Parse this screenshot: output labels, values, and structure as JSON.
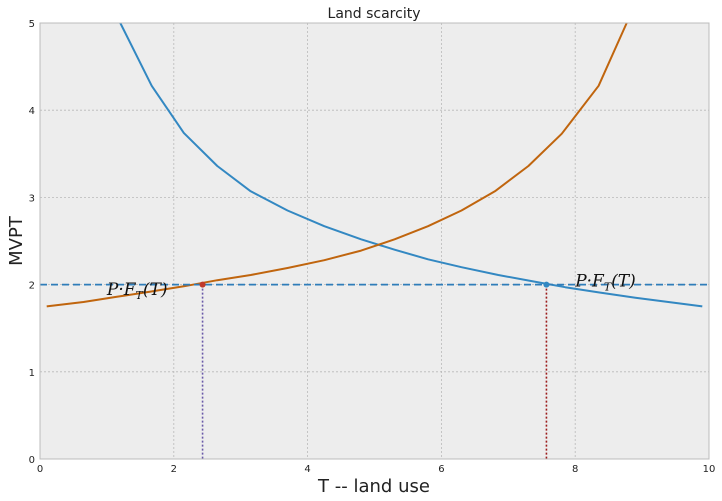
{
  "chart_data": {
    "type": "line",
    "title": "Land scarcity",
    "xlabel": "T -- land use",
    "ylabel": "MVPT",
    "xlim": [
      0,
      10
    ],
    "ylim": [
      0,
      5
    ],
    "xticks": [
      0,
      2,
      4,
      6,
      8,
      10
    ],
    "yticks": [
      0,
      1,
      2,
      3,
      4,
      5
    ],
    "xtick_labels": [
      "0",
      "2",
      "4",
      "6",
      "8",
      "10"
    ],
    "ytick_labels": [
      "0",
      "1",
      "2",
      "3",
      "4",
      "5"
    ],
    "grid": true,
    "series": [
      {
        "color": "#3388c2",
        "x": [
          1.2,
          1.67,
          2.15,
          2.65,
          3.15,
          3.7,
          4.25,
          4.8,
          5.3,
          5.8,
          6.3,
          6.85,
          7.35,
          7.85,
          8.35,
          8.9,
          9.9
        ],
        "y": [
          5.0,
          4.28,
          3.74,
          3.36,
          3.07,
          2.85,
          2.67,
          2.52,
          2.4,
          2.29,
          2.2,
          2.11,
          2.04,
          1.97,
          1.91,
          1.85,
          1.75
        ]
      },
      {
        "color": "#c0650e",
        "x": [
          0.1,
          0.65,
          1.15,
          1.65,
          2.15,
          2.65,
          3.15,
          3.7,
          4.25,
          4.8,
          5.3,
          5.8,
          6.3,
          6.8,
          7.3,
          7.8,
          8.35,
          8.77
        ],
        "y": [
          1.75,
          1.8,
          1.86,
          1.92,
          1.98,
          2.05,
          2.11,
          2.19,
          2.28,
          2.39,
          2.52,
          2.67,
          2.85,
          3.07,
          3.36,
          3.73,
          4.28,
          5.0
        ]
      }
    ],
    "hline": {
      "y": 2,
      "color": "#2f7db9"
    },
    "vlines": [
      {
        "x": 2.43,
        "y": 2,
        "color": "#6a5aa8"
      },
      {
        "x": 7.57,
        "y": 2,
        "color": "#9b1b1b"
      }
    ],
    "points": [
      {
        "x": 2.43,
        "y": 2,
        "color": "#c0392b"
      },
      {
        "x": 7.57,
        "y": 2,
        "color": "#3388c2"
      }
    ],
    "annotations": [
      {
        "text": "P·F_T(T)",
        "x": 1.0,
        "y": 1.88
      },
      {
        "text": "P·F_T(T)",
        "x": 8.0,
        "y": 1.98
      }
    ]
  }
}
